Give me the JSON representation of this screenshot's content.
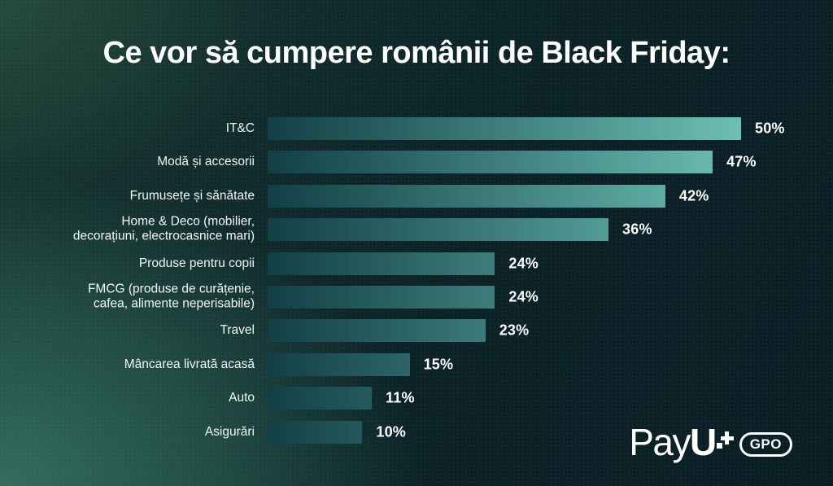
{
  "title": "Ce vor să cumpere românii de Black Friday:",
  "chart_data": {
    "type": "bar",
    "orientation": "horizontal",
    "title": "Ce vor să cumpere românii de Black Friday:",
    "categories": [
      "IT&C",
      "Modă și accesorii",
      "Frumusețe și sănătate",
      [
        "Home & Deco (mobilier,",
        "decorațiuni, electrocasnice mari)"
      ],
      "Produse pentru copii",
      [
        "FMCG (produse de curățenie,",
        "cafea, alimente neperisabile)"
      ],
      "Travel",
      "Mâncarea livrată acasă",
      "Auto",
      "Asigurări"
    ],
    "values": [
      50,
      47,
      42,
      36,
      24,
      24,
      23,
      15,
      11,
      10
    ],
    "data_labels": [
      "50%",
      "47%",
      "42%",
      "36%",
      "24%",
      "24%",
      "23%",
      "15%",
      "11%",
      "10%"
    ],
    "value_suffix": "%",
    "xlim": [
      0,
      50
    ],
    "grid": false,
    "legend": false,
    "bar_gradient": [
      "#123f45",
      "#6cc0b6"
    ]
  },
  "logo": {
    "brand_prefix": "Pay",
    "brand_suffix": "U",
    "badge": "GPO"
  },
  "colors": {
    "background_dark": "#0b2127",
    "background_green": "#34705e",
    "bar_start": "#123f45",
    "bar_end": "#6cc0b6",
    "text": "#ffffff"
  }
}
